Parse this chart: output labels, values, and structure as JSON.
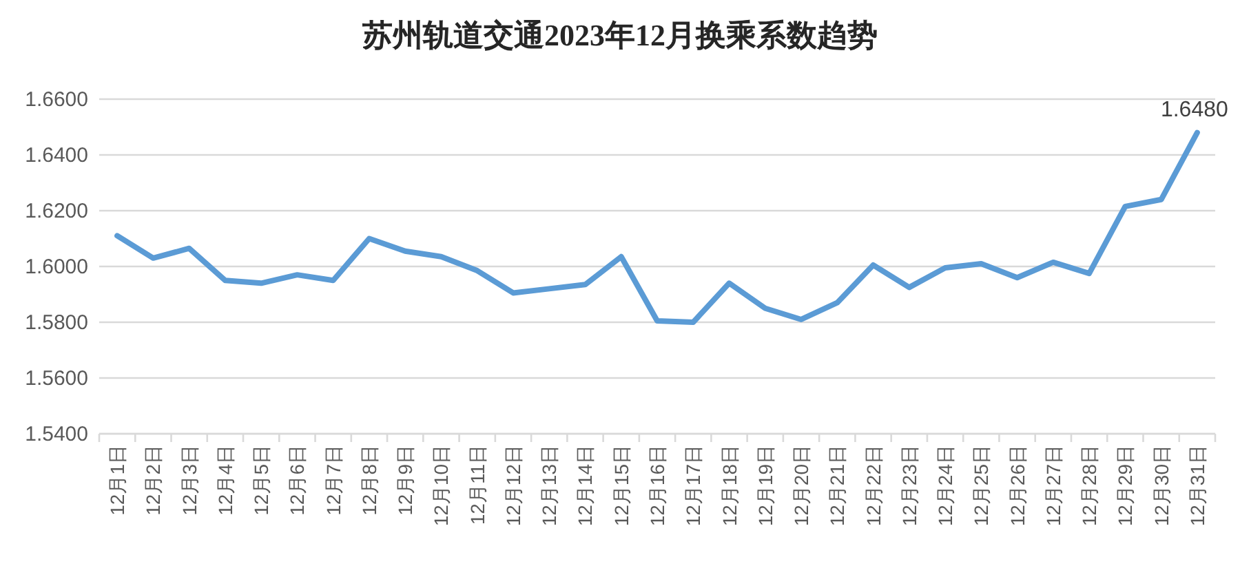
{
  "chart_data": {
    "type": "line",
    "title": "苏州轨道交通2023年12月换乘系数趋势",
    "categories": [
      "12月1日",
      "12月2日",
      "12月3日",
      "12月4日",
      "12月5日",
      "12月6日",
      "12月7日",
      "12月8日",
      "12月9日",
      "12月10日",
      "12月11日",
      "12月12日",
      "12月13日",
      "12月14日",
      "12月15日",
      "12月16日",
      "12月17日",
      "12月18日",
      "12月19日",
      "12月20日",
      "12月21日",
      "12月22日",
      "12月23日",
      "12月24日",
      "12月25日",
      "12月26日",
      "12月27日",
      "12月28日",
      "12月29日",
      "12月30日",
      "12月31日"
    ],
    "series": [
      {
        "color": "#5b9bd5",
        "values": [
          1.611,
          1.603,
          1.6065,
          1.595,
          1.594,
          1.597,
          1.595,
          1.61,
          1.6055,
          1.6035,
          1.5985,
          1.5905,
          1.592,
          1.5935,
          1.6035,
          1.5805,
          1.58,
          1.594,
          1.585,
          1.581,
          1.587,
          1.6005,
          1.5925,
          1.5995,
          1.601,
          1.596,
          1.6015,
          1.5975,
          1.6215,
          1.624,
          1.648
        ],
        "value_labels": [
          null,
          null,
          null,
          null,
          null,
          null,
          null,
          null,
          null,
          null,
          null,
          null,
          null,
          null,
          null,
          null,
          null,
          null,
          null,
          null,
          null,
          null,
          null,
          null,
          null,
          null,
          null,
          null,
          null,
          null,
          "1.6480"
        ]
      }
    ],
    "ylim": [
      1.54,
      1.66
    ],
    "yticks": [
      {
        "value": 1.54,
        "label": "1.5400"
      },
      {
        "value": 1.56,
        "label": "1.5600"
      },
      {
        "value": 1.58,
        "label": "1.5800"
      },
      {
        "value": 1.6,
        "label": "1.6000"
      },
      {
        "value": 1.62,
        "label": "1.6200"
      },
      {
        "value": 1.64,
        "label": "1.6400"
      },
      {
        "value": 1.66,
        "label": "1.6600"
      }
    ],
    "grid": "y",
    "marker": "none",
    "line_style": "solid"
  }
}
